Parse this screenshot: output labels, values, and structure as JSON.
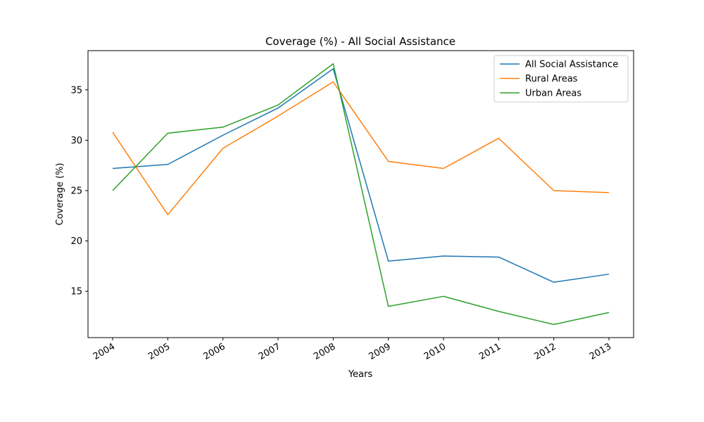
{
  "chart_data": {
    "type": "line",
    "title": "Coverage (%) - All Social Assistance",
    "xlabel": "Years",
    "ylabel": "Coverage (%)",
    "x": [
      "2004",
      "2005",
      "2006",
      "2007",
      "2008",
      "2009",
      "2010",
      "2011",
      "2012",
      "2013"
    ],
    "yticks": [
      15,
      20,
      25,
      30,
      35
    ],
    "ylim": [
      10.4,
      38.9
    ],
    "grid": false,
    "legend_position": "top-right",
    "series": [
      {
        "name": "All Social Assistance",
        "color": "#1f77b4",
        "values": [
          27.2,
          27.6,
          30.5,
          33.2,
          37.1,
          18.0,
          18.5,
          18.4,
          15.9,
          16.7
        ]
      },
      {
        "name": "Rural Areas",
        "color": "#ff7f0e",
        "values": [
          30.8,
          22.6,
          29.2,
          32.4,
          35.8,
          27.9,
          27.2,
          30.2,
          25.0,
          24.8
        ]
      },
      {
        "name": "Urban Areas",
        "color": "#2ca02c",
        "values": [
          25.0,
          30.7,
          31.3,
          33.5,
          37.6,
          13.5,
          14.5,
          13.0,
          11.7,
          12.9
        ]
      }
    ]
  }
}
